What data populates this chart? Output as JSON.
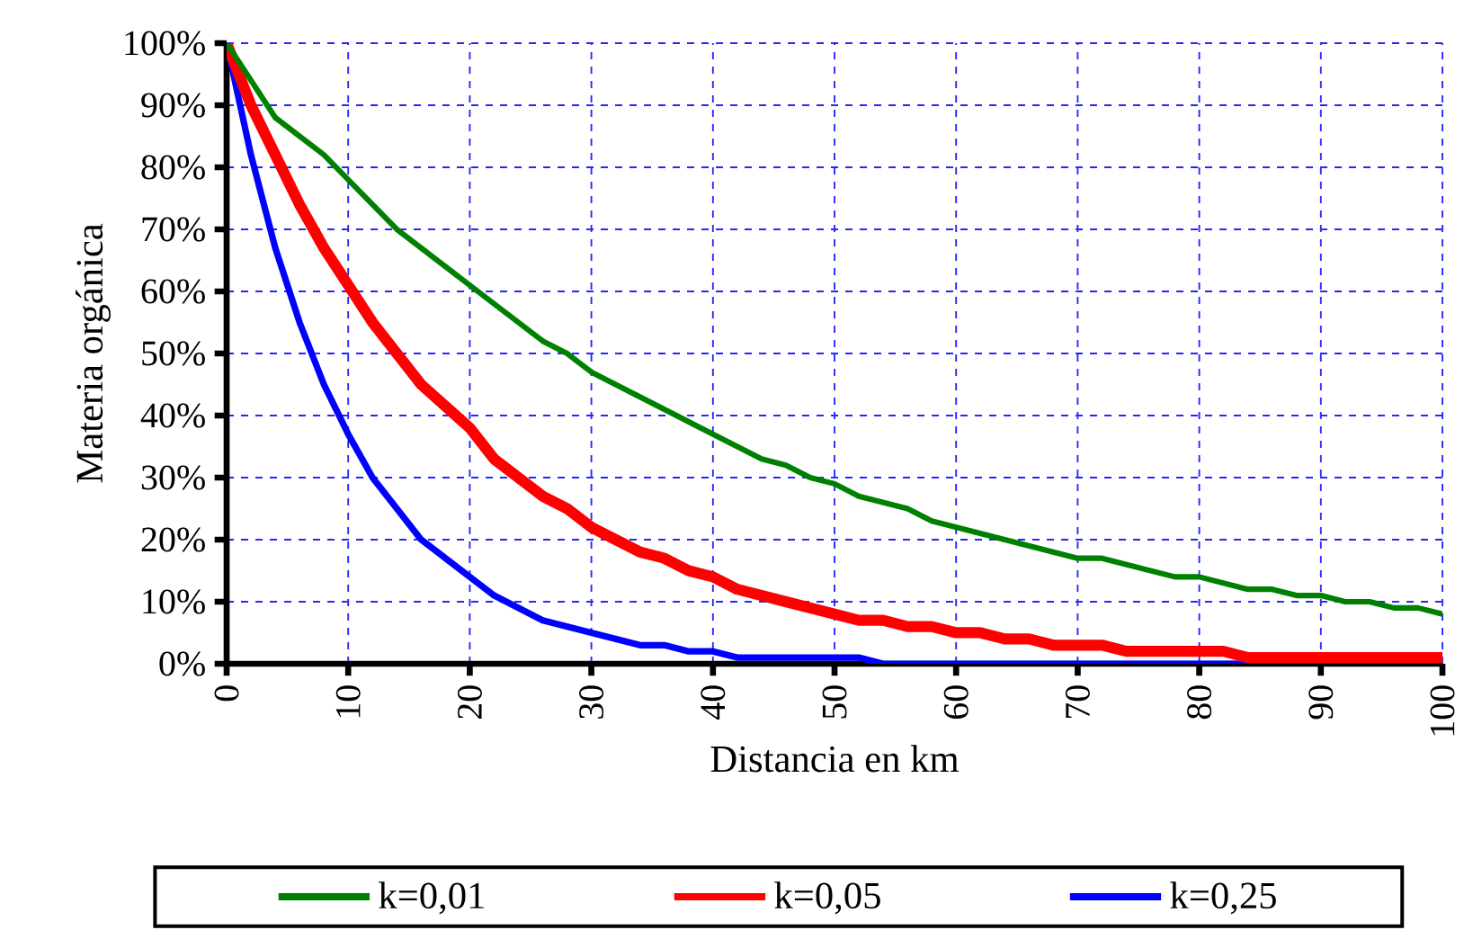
{
  "chart_data": {
    "type": "line",
    "xlabel": "Distancia en km",
    "ylabel": "Materia orgánica",
    "xlim": [
      0,
      100
    ],
    "xticks": [
      0,
      10,
      20,
      30,
      40,
      50,
      60,
      70,
      80,
      90,
      100
    ],
    "ylim": [
      0,
      100
    ],
    "yticks": [
      {
        "value": 0,
        "label": "0%"
      },
      {
        "value": 10,
        "label": "10%"
      },
      {
        "value": 20,
        "label": "20%"
      },
      {
        "value": 30,
        "label": "30%"
      },
      {
        "value": 40,
        "label": "40%"
      },
      {
        "value": 50,
        "label": "50%"
      },
      {
        "value": 60,
        "label": "60%"
      },
      {
        "value": 70,
        "label": "70%"
      },
      {
        "value": 80,
        "label": "80%"
      },
      {
        "value": 90,
        "label": "90%"
      },
      {
        "value": 100,
        "label": "100%"
      }
    ],
    "grid": true,
    "legend": "bottom",
    "marker": "none",
    "line_style": "solid",
    "series": [
      {
        "name": "k=0,01",
        "color": "#008000",
        "x": [
          0,
          4,
          8,
          12,
          14,
          20,
          26,
          28,
          30,
          40,
          44,
          46,
          48,
          50,
          52,
          56,
          58,
          60,
          64,
          70,
          72,
          78,
          80,
          84,
          86,
          88,
          90,
          92,
          94,
          96,
          98,
          100
        ],
        "values": [
          100,
          88,
          82,
          74,
          70,
          61,
          52,
          50,
          47,
          37,
          33,
          32,
          30,
          29,
          27,
          25,
          23,
          22,
          20,
          17,
          17,
          14,
          14,
          12,
          12,
          11,
          11,
          10,
          10,
          9,
          9,
          8
        ]
      },
      {
        "name": "k=0,05",
        "color": "#ff0000",
        "x": [
          0,
          2,
          6,
          8,
          12,
          16,
          20,
          22,
          26,
          28,
          30,
          34,
          36,
          38,
          40,
          42,
          46,
          50,
          52,
          54,
          56,
          58,
          60,
          62,
          64,
          66,
          68,
          72,
          74,
          82,
          84,
          100
        ],
        "values": [
          100,
          90,
          74,
          67,
          55,
          45,
          38,
          33,
          27,
          25,
          22,
          18,
          17,
          15,
          14,
          12,
          10,
          8,
          7,
          7,
          6,
          6,
          5,
          5,
          4,
          4,
          3,
          3,
          2,
          2,
          1,
          1
        ]
      },
      {
        "name": "k=0,25",
        "color": "#0000ff",
        "x": [
          0,
          2,
          4,
          6,
          8,
          10,
          12,
          16,
          20,
          22,
          26,
          28,
          30,
          34,
          36,
          38,
          40,
          42,
          52,
          54,
          100
        ],
        "values": [
          100,
          82,
          67,
          55,
          45,
          37,
          30,
          20,
          14,
          11,
          7,
          6,
          5,
          3,
          3,
          2,
          2,
          1,
          1,
          0,
          0
        ]
      }
    ]
  }
}
